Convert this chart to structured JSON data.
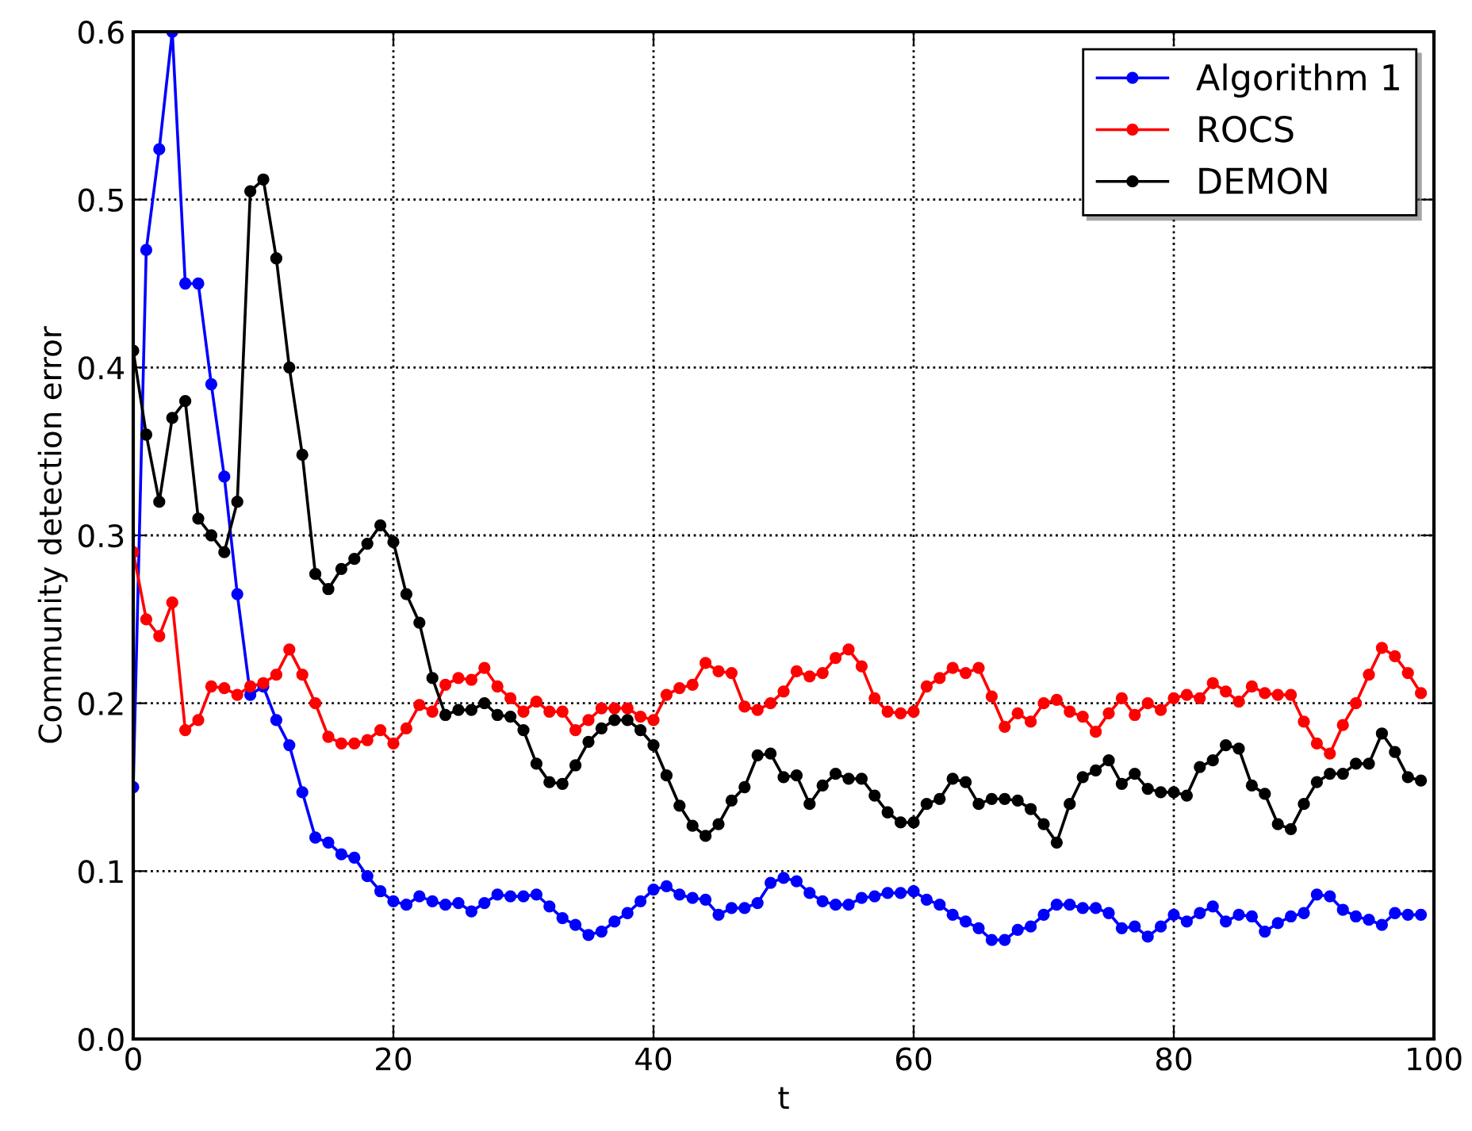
{
  "chart_data": {
    "type": "line",
    "xlabel": "t",
    "ylabel": "Community detection error",
    "x": [
      0,
      1,
      2,
      3,
      4,
      5,
      6,
      7,
      8,
      9,
      10,
      11,
      12,
      13,
      14,
      15,
      16,
      17,
      18,
      19,
      20,
      21,
      22,
      23,
      24,
      25,
      26,
      27,
      28,
      29,
      30,
      31,
      32,
      33,
      34,
      35,
      36,
      37,
      38,
      39,
      40,
      41,
      42,
      43,
      44,
      45,
      46,
      47,
      48,
      49,
      50,
      51,
      52,
      53,
      54,
      55,
      56,
      57,
      58,
      59,
      60,
      61,
      62,
      63,
      64,
      65,
      66,
      67,
      68,
      69,
      70,
      71,
      72,
      73,
      74,
      75,
      76,
      77,
      78,
      79,
      80,
      81,
      82,
      83,
      84,
      85,
      86,
      87,
      88,
      89,
      90,
      91,
      92,
      93,
      94,
      95,
      96,
      97,
      98,
      99
    ],
    "series": [
      {
        "name": "Algorithm 1",
        "color": "#0000ff",
        "values": [
          0.15,
          0.47,
          0.53,
          0.6,
          0.45,
          0.45,
          0.39,
          0.335,
          0.265,
          0.205,
          0.21,
          0.19,
          0.175,
          0.147,
          0.12,
          0.117,
          0.11,
          0.108,
          0.097,
          0.088,
          0.082,
          0.08,
          0.085,
          0.082,
          0.08,
          0.081,
          0.076,
          0.081,
          0.086,
          0.085,
          0.085,
          0.086,
          0.079,
          0.072,
          0.068,
          0.062,
          0.064,
          0.07,
          0.075,
          0.082,
          0.089,
          0.091,
          0.086,
          0.084,
          0.083,
          0.074,
          0.078,
          0.078,
          0.081,
          0.093,
          0.096,
          0.094,
          0.087,
          0.082,
          0.08,
          0.08,
          0.084,
          0.085,
          0.087,
          0.087,
          0.088,
          0.083,
          0.08,
          0.074,
          0.07,
          0.066,
          0.059,
          0.059,
          0.065,
          0.067,
          0.074,
          0.08,
          0.08,
          0.078,
          0.078,
          0.075,
          0.066,
          0.067,
          0.061,
          0.067,
          0.074,
          0.07,
          0.075,
          0.079,
          0.07,
          0.074,
          0.073,
          0.064,
          0.069,
          0.073,
          0.075,
          0.086,
          0.085,
          0.077,
          0.073,
          0.071,
          0.068,
          0.075,
          0.074,
          0.074
        ]
      },
      {
        "name": "ROCS",
        "color": "#ff0000",
        "values": [
          0.29,
          0.25,
          0.24,
          0.26,
          0.184,
          0.19,
          0.21,
          0.209,
          0.205,
          0.21,
          0.212,
          0.217,
          0.232,
          0.217,
          0.2,
          0.18,
          0.176,
          0.176,
          0.178,
          0.184,
          0.176,
          0.185,
          0.199,
          0.195,
          0.211,
          0.215,
          0.214,
          0.221,
          0.21,
          0.203,
          0.195,
          0.201,
          0.195,
          0.195,
          0.184,
          0.19,
          0.197,
          0.197,
          0.197,
          0.192,
          0.19,
          0.205,
          0.209,
          0.211,
          0.224,
          0.219,
          0.218,
          0.198,
          0.196,
          0.2,
          0.207,
          0.219,
          0.216,
          0.218,
          0.227,
          0.232,
          0.222,
          0.203,
          0.195,
          0.194,
          0.195,
          0.21,
          0.215,
          0.221,
          0.218,
          0.221,
          0.204,
          0.186,
          0.194,
          0.189,
          0.2,
          0.202,
          0.195,
          0.192,
          0.183,
          0.194,
          0.203,
          0.193,
          0.2,
          0.196,
          0.203,
          0.205,
          0.203,
          0.212,
          0.207,
          0.201,
          0.21,
          0.206,
          0.205,
          0.205,
          0.189,
          0.176,
          0.17,
          0.187,
          0.2,
          0.217,
          0.233,
          0.228,
          0.218,
          0.206
        ]
      },
      {
        "name": "DEMON",
        "color": "#000000",
        "values": [
          0.41,
          0.36,
          0.32,
          0.37,
          0.38,
          0.31,
          0.3,
          0.29,
          0.32,
          0.505,
          0.512,
          0.465,
          0.4,
          0.348,
          0.277,
          0.268,
          0.28,
          0.286,
          0.295,
          0.306,
          0.296,
          0.265,
          0.248,
          0.215,
          0.193,
          0.196,
          0.196,
          0.2,
          0.193,
          0.192,
          0.184,
          0.164,
          0.153,
          0.152,
          0.163,
          0.177,
          0.185,
          0.19,
          0.19,
          0.184,
          0.175,
          0.157,
          0.139,
          0.127,
          0.121,
          0.128,
          0.142,
          0.15,
          0.169,
          0.17,
          0.156,
          0.157,
          0.14,
          0.151,
          0.158,
          0.155,
          0.155,
          0.145,
          0.135,
          0.129,
          0.129,
          0.14,
          0.143,
          0.155,
          0.153,
          0.14,
          0.143,
          0.143,
          0.142,
          0.137,
          0.128,
          0.117,
          0.14,
          0.156,
          0.16,
          0.166,
          0.152,
          0.158,
          0.149,
          0.147,
          0.147,
          0.145,
          0.162,
          0.166,
          0.175,
          0.173,
          0.151,
          0.146,
          0.128,
          0.125,
          0.14,
          0.153,
          0.158,
          0.158,
          0.164,
          0.164,
          0.182,
          0.171,
          0.156,
          0.154
        ]
      }
    ],
    "xlim": [
      0,
      100
    ],
    "xticks": [
      0,
      20,
      40,
      60,
      80,
      100
    ],
    "ylim": [
      0.0,
      0.6
    ],
    "yticks": [
      {
        "value": 0,
        "label": "0.0"
      },
      0.1,
      0.2,
      0.3,
      0.4,
      0.5,
      0.6
    ],
    "grid": true,
    "legend": "top right",
    "marker": "circle",
    "line_style": "solid"
  }
}
